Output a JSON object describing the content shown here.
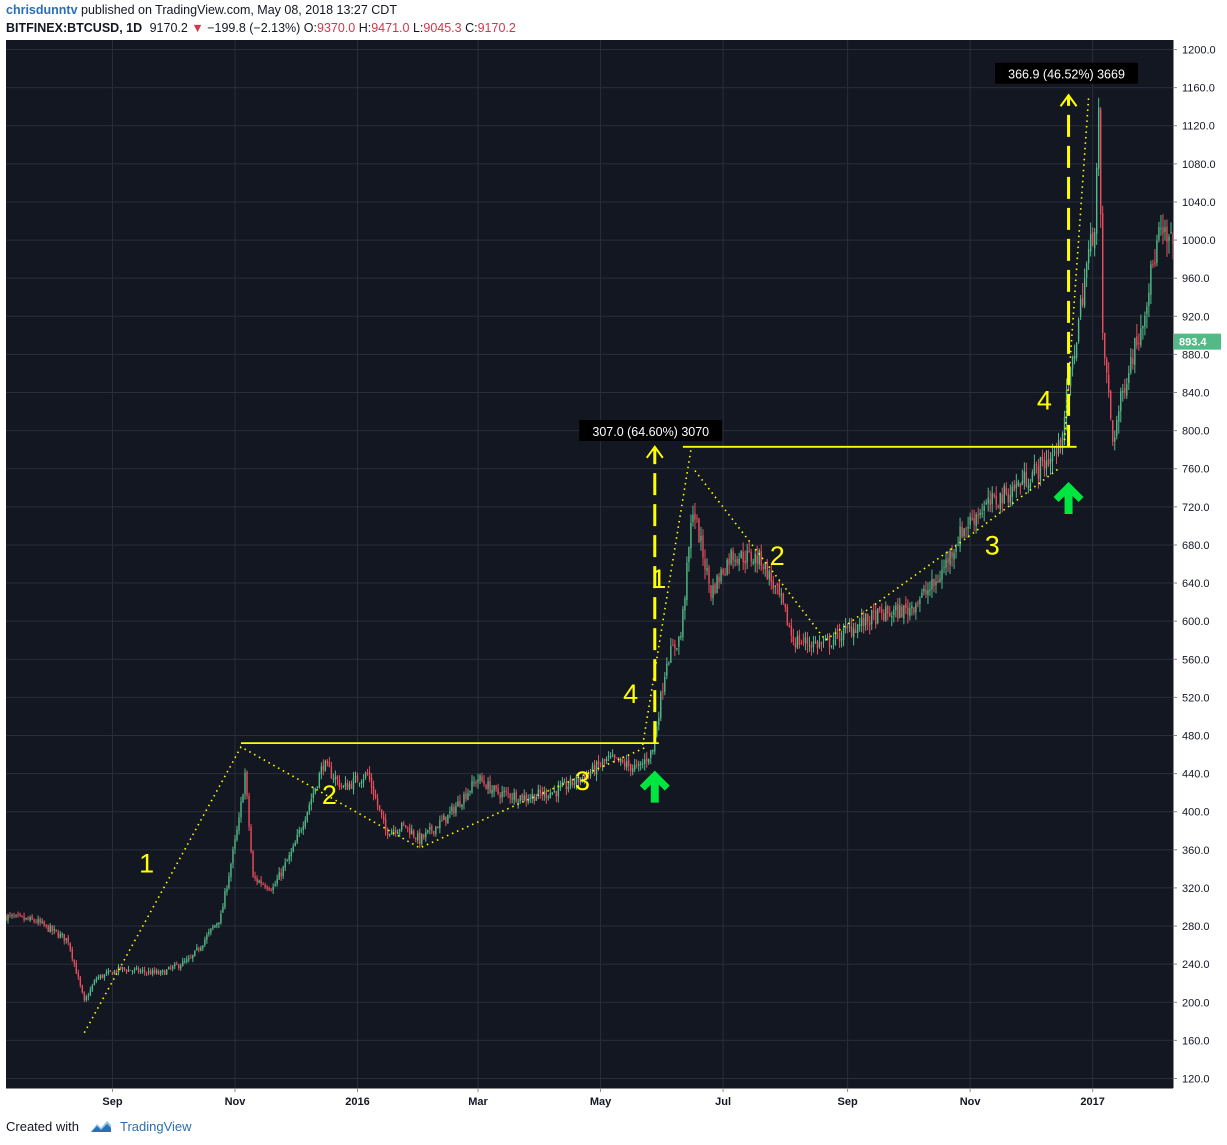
{
  "header": {
    "author": "chrisdunntv",
    "published": "published on TradingView.com, May 08, 2018 13:27 CDT",
    "symbol": "BITFINEX:BTCUSD, 1D",
    "last": "9170.2",
    "change": "−199.8 (−2.13%)",
    "open_label": "O:",
    "open": "9370.0",
    "high_label": "H:",
    "high": "9471.0",
    "low_label": "L:",
    "low": "9045.3",
    "close_label": "C:",
    "close": "9170.2"
  },
  "footer": {
    "created_with": "Created with",
    "brand": "TradingView"
  },
  "colors": {
    "background": "#131722",
    "grid": "#2a2e39",
    "up": "#53b987",
    "down": "#eb4d5c",
    "annotation": "#ffff00",
    "arrow": "#00e640",
    "price_badge": "#53b987"
  },
  "chart_data": {
    "type": "candlestick",
    "title": "",
    "xlabel": "",
    "ylabel": "",
    "ylim": [
      110,
      1210
    ],
    "x_range": [
      "2015-07-10",
      "2017-02-10"
    ],
    "y_ticks": [
      "120.0",
      "160.0",
      "200.0",
      "240.0",
      "280.0",
      "320.0",
      "360.0",
      "400.0",
      "440.0",
      "480.0",
      "520.0",
      "560.0",
      "600.0",
      "640.0",
      "680.0",
      "720.0",
      "760.0",
      "800.0",
      "840.0",
      "880.0",
      "920.0",
      "960.0",
      "1000.0",
      "1040.0",
      "1080.0",
      "1120.0",
      "1160.0",
      "1200.0"
    ],
    "x_ticks": [
      {
        "label": "Sep",
        "date": "2015-09-01"
      },
      {
        "label": "Nov",
        "date": "2015-11-01"
      },
      {
        "label": "2016",
        "date": "2016-01-01"
      },
      {
        "label": "Mar",
        "date": "2016-03-01"
      },
      {
        "label": "May",
        "date": "2016-05-01"
      },
      {
        "label": "Jul",
        "date": "2016-07-01"
      },
      {
        "label": "Sep",
        "date": "2016-09-01"
      },
      {
        "label": "Nov",
        "date": "2016-11-01"
      },
      {
        "label": "2017",
        "date": "2017-01-01"
      }
    ],
    "price_path": [
      [
        "2015-07-10",
        290
      ],
      [
        "2015-07-25",
        285
      ],
      [
        "2015-08-10",
        265
      ],
      [
        "2015-08-18",
        200
      ],
      [
        "2015-08-24",
        225
      ],
      [
        "2015-09-05",
        235
      ],
      [
        "2015-09-25",
        230
      ],
      [
        "2015-10-10",
        245
      ],
      [
        "2015-10-25",
        290
      ],
      [
        "2015-11-03",
        390
      ],
      [
        "2015-11-06",
        440
      ],
      [
        "2015-11-10",
        330
      ],
      [
        "2015-11-20",
        320
      ],
      [
        "2015-11-30",
        360
      ],
      [
        "2015-12-10",
        420
      ],
      [
        "2015-12-15",
        450
      ],
      [
        "2015-12-25",
        425
      ],
      [
        "2016-01-06",
        440
      ],
      [
        "2016-01-15",
        380
      ],
      [
        "2016-01-25",
        385
      ],
      [
        "2016-02-01",
        370
      ],
      [
        "2016-02-15",
        395
      ],
      [
        "2016-03-01",
        435
      ],
      [
        "2016-03-10",
        420
      ],
      [
        "2016-03-25",
        415
      ],
      [
        "2016-04-10",
        422
      ],
      [
        "2016-04-25",
        440
      ],
      [
        "2016-05-05",
        455
      ],
      [
        "2016-05-20",
        445
      ],
      [
        "2016-05-27",
        465
      ],
      [
        "2016-06-03",
        560
      ],
      [
        "2016-06-10",
        585
      ],
      [
        "2016-06-16",
        720
      ],
      [
        "2016-06-20",
        680
      ],
      [
        "2016-06-25",
        630
      ],
      [
        "2016-07-05",
        670
      ],
      [
        "2016-07-20",
        665
      ],
      [
        "2016-07-30",
        620
      ],
      [
        "2016-08-05",
        580
      ],
      [
        "2016-08-20",
        575
      ],
      [
        "2016-09-01",
        590
      ],
      [
        "2016-09-15",
        605
      ],
      [
        "2016-10-01",
        612
      ],
      [
        "2016-10-15",
        640
      ],
      [
        "2016-10-28",
        695
      ],
      [
        "2016-11-05",
        715
      ],
      [
        "2016-11-20",
        735
      ],
      [
        "2016-12-05",
        760
      ],
      [
        "2016-12-15",
        780
      ],
      [
        "2016-12-22",
        870
      ],
      [
        "2016-12-28",
        960
      ],
      [
        "2017-01-02",
        1020
      ],
      [
        "2017-01-04",
        1130
      ],
      [
        "2017-01-06",
        900
      ],
      [
        "2017-01-11",
        790
      ],
      [
        "2017-01-18",
        860
      ],
      [
        "2017-01-25",
        910
      ],
      [
        "2017-02-03",
        1005
      ],
      [
        "2017-02-10",
        995
      ]
    ],
    "current_price": "893.4",
    "measure_labels": [
      {
        "text": "307.0 (64.60%) 3070",
        "date": "2016-05-26",
        "price": 787
      },
      {
        "text": "366.9 (46.52%) 3669",
        "date": "2016-12-19",
        "price": 1162
      }
    ],
    "wave_labels": [
      {
        "text": "1",
        "date": "2015-09-18",
        "price": 336
      },
      {
        "text": "2",
        "date": "2015-12-18",
        "price": 408
      },
      {
        "text": "3",
        "date": "2016-04-22",
        "price": 423
      },
      {
        "text": "4",
        "date": "2016-05-16",
        "price": 514
      },
      {
        "text": "1",
        "date": "2016-05-30",
        "price": 635
      },
      {
        "text": "2",
        "date": "2016-07-28",
        "price": 659
      },
      {
        "text": "3",
        "date": "2016-11-12",
        "price": 670
      },
      {
        "text": "4",
        "date": "2016-12-08",
        "price": 822
      }
    ],
    "resistance_lines": [
      {
        "from": "2015-11-04",
        "to": "2016-05-30",
        "price": 472
      },
      {
        "from": "2016-06-11",
        "to": "2016-12-24",
        "price": 783
      }
    ],
    "wave_paths": [
      [
        [
          "2015-08-18",
          168
        ],
        [
          "2015-11-04",
          468
        ],
        [
          "2016-02-01",
          362
        ],
        [
          "2016-05-24",
          468
        ]
      ],
      [
        [
          "2016-06-17",
          758
        ],
        [
          "2016-08-21",
          580
        ],
        [
          "2016-11-01",
          690
        ],
        [
          "2016-12-15",
          760
        ]
      ]
    ],
    "projection_paths": [
      [
        [
          "2016-05-22",
          470
        ],
        [
          "2016-06-15",
          780
        ]
      ],
      [
        [
          "2016-12-18",
          790
        ],
        [
          "2016-12-30",
          1150
        ]
      ]
    ],
    "measure_arrows": [
      {
        "date": "2016-05-28",
        "from": 472,
        "to": 783
      },
      {
        "date": "2016-12-20",
        "from": 783,
        "to": 1152
      }
    ],
    "entry_arrows": [
      {
        "date": "2016-05-28",
        "price": 420
      },
      {
        "date": "2016-12-20",
        "price": 723
      }
    ]
  }
}
